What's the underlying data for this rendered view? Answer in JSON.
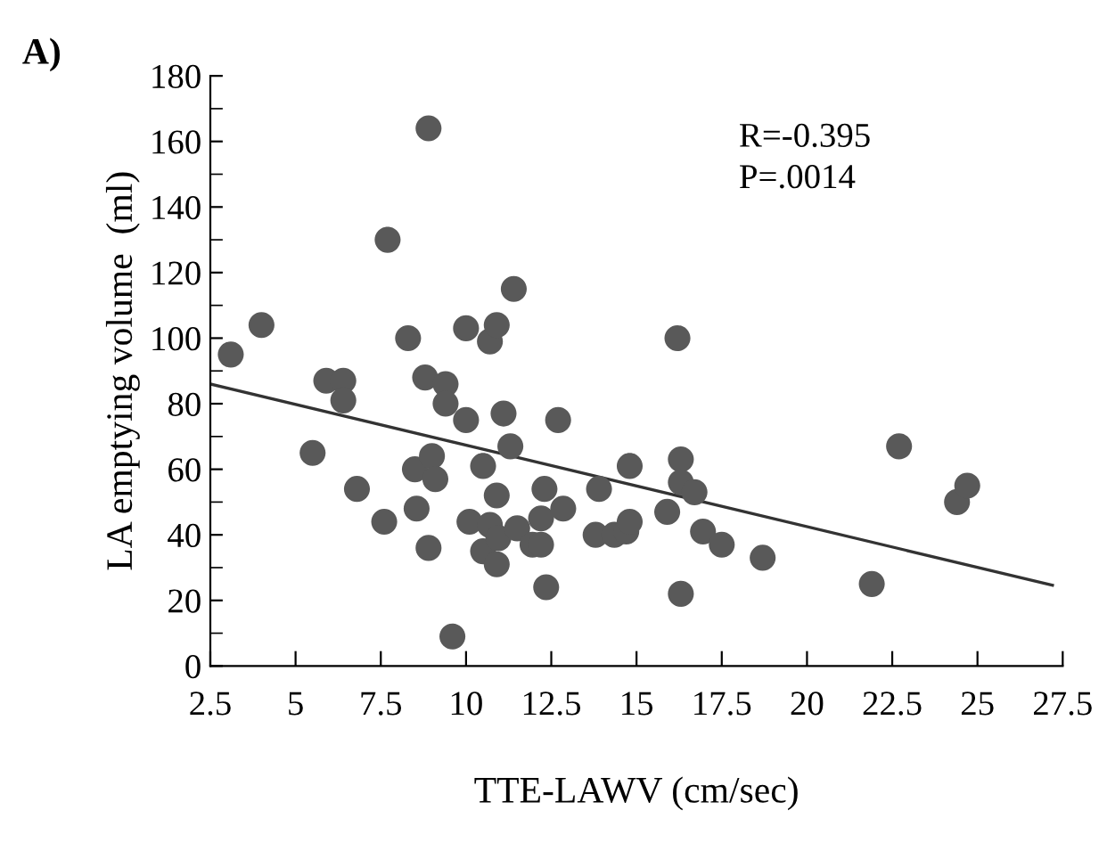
{
  "chart_data": {
    "type": "scatter",
    "title": "A)",
    "xlabel": "TTE-LAWV (cm/sec)",
    "ylabel": "LA emptying volume  (ml)",
    "annotations": [
      "R=-0.395",
      "P=.0014"
    ],
    "series": [
      {
        "color": "#595959",
        "marker": "circle",
        "x": [
          3.1,
          4.0,
          5.5,
          5.9,
          6.4,
          6.4,
          6.8,
          7.6,
          7.7,
          8.3,
          8.5,
          8.55,
          8.8,
          8.9,
          8.9,
          9.0,
          9.1,
          9.4,
          9.4,
          9.6,
          10.0,
          10.0,
          10.1,
          10.5,
          10.5,
          10.7,
          10.7,
          10.9,
          10.9,
          10.9,
          10.95,
          11.1,
          11.3,
          11.4,
          11.5,
          11.95,
          12.2,
          12.2,
          12.3,
          12.35,
          12.7,
          12.85,
          13.8,
          13.9,
          14.35,
          14.7,
          14.8,
          14.8,
          15.9,
          16.2,
          16.3,
          16.3,
          16.3,
          16.7,
          16.95,
          17.5,
          18.7,
          21.9,
          22.7,
          24.4,
          24.7
        ],
        "values": [
          95,
          104,
          65,
          87,
          87,
          81,
          54,
          44,
          130,
          100,
          60,
          48,
          88,
          36,
          164,
          64,
          57,
          86,
          80,
          9,
          75,
          103,
          44,
          61,
          35,
          43,
          99,
          104,
          52,
          31,
          39,
          77,
          67,
          115,
          42,
          37,
          37,
          45,
          54,
          24,
          75,
          48,
          40,
          54,
          40,
          41,
          44,
          61,
          47,
          100,
          63,
          56,
          22,
          53,
          41,
          37,
          33,
          25,
          67,
          50,
          55
        ]
      },
      {
        "type": "line",
        "color": "#333333",
        "marker": "none",
        "line_style": "solid",
        "x": [
          2.5,
          27.2
        ],
        "values": [
          86,
          24.6
        ]
      }
    ],
    "xlim": [
      2.5,
      27.5
    ],
    "xticks": [
      2.5,
      5,
      7.5,
      10,
      12.5,
      15,
      17.5,
      20,
      22.5,
      25,
      27.5
    ],
    "ylim": [
      0,
      180
    ],
    "yticks": [
      0,
      20,
      40,
      60,
      80,
      100,
      120,
      140,
      160,
      180
    ],
    "grid": false,
    "legend": false
  }
}
